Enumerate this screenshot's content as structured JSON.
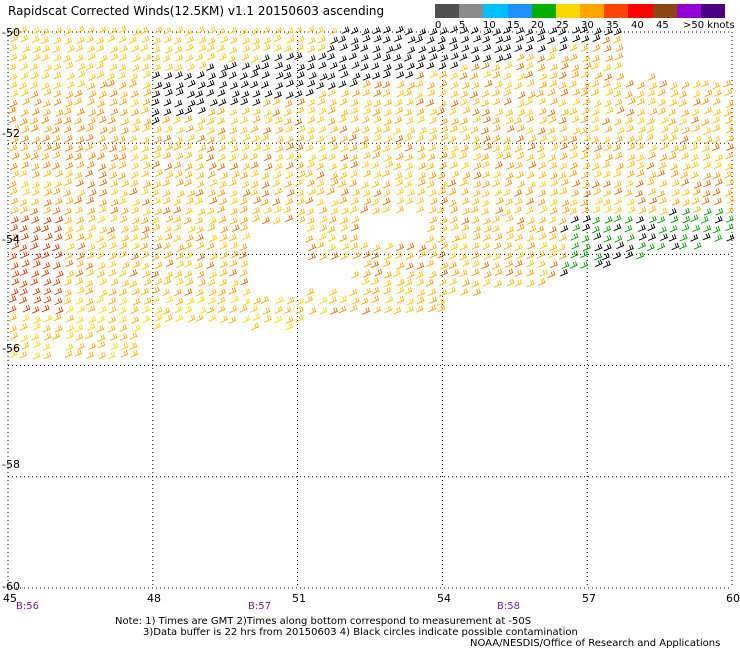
{
  "title": "Rapidscat Corrected Winds(12.5KM) v1.1 20150603 ascending",
  "legend": {
    "labels": [
      "0",
      "5",
      "10",
      "15",
      "20",
      "25",
      "30",
      "35",
      "40",
      "45",
      ">50 knots"
    ],
    "colors": [
      "#505050",
      "#8a8a8a",
      "#00bfff",
      "#1e90ff",
      "#00b000",
      "#ffd700",
      "#ffa500",
      "#ff4500",
      "#ff0000",
      "#8b4513",
      "#9400d3",
      "#4b0082"
    ]
  },
  "map": {
    "lat_labels": [
      "-50",
      "-52",
      "-54",
      "-56",
      "-58",
      "-60"
    ],
    "lon_labels": [
      "45",
      "48",
      "51",
      "54",
      "57",
      "60"
    ],
    "lat_range": [
      -60,
      -50
    ],
    "lon_range": [
      45,
      60
    ],
    "grid": "dotted",
    "wind_barb_color_scale": "knots"
  },
  "time_labels": [
    {
      "text": "B:56",
      "lon": 45.2
    },
    {
      "text": "B:57",
      "lon": 50.2
    },
    {
      "text": "B:58",
      "lon": 55.2
    }
  ],
  "notes": [
    "Note: 1) Times are GMT 2)Times along bottom correspond to measurement at -50S",
    "3)Data buffer is 22 hrs from 20150603 4) Black circles indicate possible contamination",
    "NOAA/NESDIS/Office of Research and Applications"
  ]
}
